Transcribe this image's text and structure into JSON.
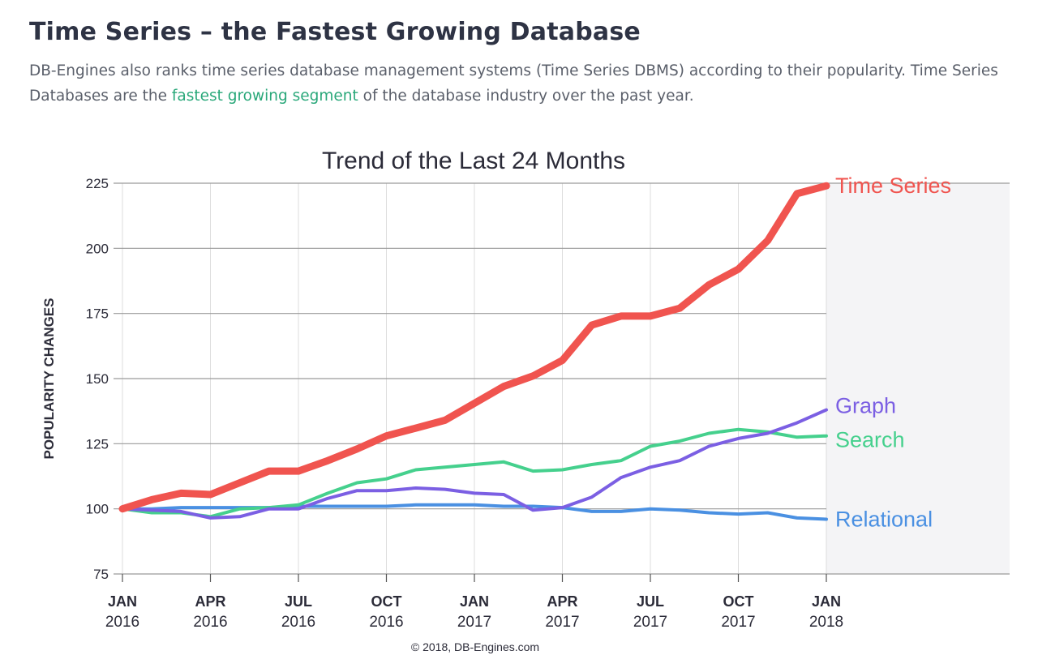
{
  "page": {
    "heading": "Time Series – the Fastest Growing Database",
    "intro_before": "DB-Engines also ranks time series database management systems (Time Series DBMS) according to their popularity. Time Series Databases are the ",
    "intro_link": "fastest growing segment",
    "intro_after": " of the database industry over the past year."
  },
  "colors": {
    "time_series": "#f0544f",
    "graph": "#7b5fe3",
    "search": "#45d08d",
    "relational": "#4a90e2",
    "link": "#2aa87a"
  },
  "chart_data": {
    "type": "line",
    "title": "Trend of the Last 24 Months",
    "xlabel": "",
    "ylabel": "POPULARITY CHANGES",
    "ylim": [
      75,
      225
    ],
    "yticks": [
      75,
      100,
      125,
      150,
      175,
      200,
      225
    ],
    "x": [
      0,
      1,
      2,
      3,
      4,
      5,
      6,
      7,
      8,
      9,
      10,
      11,
      12,
      13,
      14,
      15,
      16,
      17,
      18,
      19,
      20,
      21,
      22,
      23,
      24
    ],
    "x_ticks": [
      {
        "month": 0,
        "line1": "JAN",
        "line2": "2016"
      },
      {
        "month": 3,
        "line1": "APR",
        "line2": "2016"
      },
      {
        "month": 6,
        "line1": "JUL",
        "line2": "2016"
      },
      {
        "month": 9,
        "line1": "OCT",
        "line2": "2016"
      },
      {
        "month": 12,
        "line1": "JAN",
        "line2": "2017"
      },
      {
        "month": 15,
        "line1": "APR",
        "line2": "2017"
      },
      {
        "month": 18,
        "line1": "JUL",
        "line2": "2017"
      },
      {
        "month": 21,
        "line1": "OCT",
        "line2": "2017"
      },
      {
        "month": 24,
        "line1": "JAN",
        "line2": "2018"
      }
    ],
    "series": [
      {
        "name": "Time Series",
        "color_key": "time_series",
        "values": [
          100,
          103.5,
          106,
          105.5,
          110,
          114.5,
          114.5,
          118.5,
          123,
          128,
          131,
          134,
          140.5,
          147,
          151,
          157,
          170.5,
          174,
          174,
          177,
          186,
          192,
          203,
          221,
          224
        ]
      },
      {
        "name": "Graph",
        "color_key": "graph",
        "values": [
          100,
          99.5,
          99,
          96.5,
          97,
          100,
          100,
          104,
          107,
          107,
          108,
          107.5,
          106,
          105.5,
          99.5,
          100.5,
          104.5,
          112,
          116,
          118.5,
          124,
          127,
          129,
          133,
          138
        ]
      },
      {
        "name": "Search",
        "color_key": "search",
        "values": [
          100,
          98.5,
          98.5,
          97,
          100,
          100.5,
          101.5,
          106,
          110,
          111.5,
          115,
          116,
          117,
          118,
          114.5,
          115,
          117,
          118.5,
          124,
          126,
          129,
          130.5,
          129.5,
          127.5,
          128
        ]
      },
      {
        "name": "Relational",
        "color_key": "relational",
        "values": [
          100,
          100,
          100.5,
          100.5,
          100.5,
          100.5,
          101,
          101,
          101,
          101,
          101.5,
          101.5,
          101.5,
          101,
          101,
          100.5,
          99,
          99,
          100,
          99.5,
          98.5,
          98,
          98.5,
          96.5,
          96
        ]
      }
    ],
    "copyright": "© 2018, DB-Engines.com"
  }
}
